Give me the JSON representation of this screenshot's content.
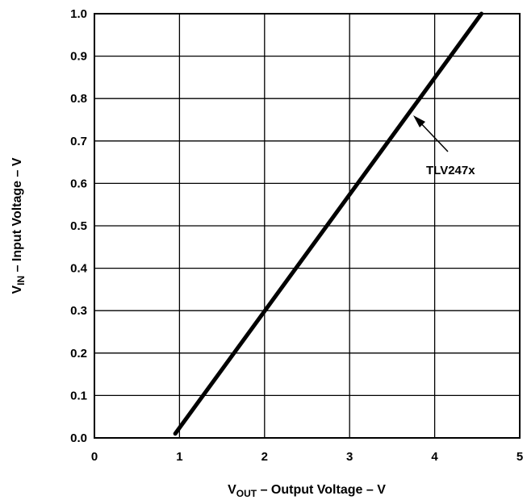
{
  "chart_data": {
    "type": "line",
    "title": "",
    "x": [
      0.95,
      4.55
    ],
    "series": [
      {
        "values": [
          0.01,
          1.0
        ]
      }
    ],
    "xlim": [
      0,
      5
    ],
    "ylim": [
      0.0,
      1.0
    ],
    "xticks": [
      "0",
      "1",
      "2",
      "3",
      "4",
      "5"
    ],
    "yticks": [
      "0.0",
      "0.1",
      "0.2",
      "0.3",
      "0.4",
      "0.5",
      "0.6",
      "0.7",
      "0.8",
      "0.9",
      "1.0"
    ],
    "xlabel": {
      "main": "V",
      "sub": "OUT",
      "rest": " – Output Voltage – V"
    },
    "ylabel": {
      "main": "V",
      "sub": "IN",
      "rest": " – Input Voltage – V"
    },
    "grid": true,
    "annotations": [
      {
        "text": "TLV247x",
        "x": 3.75,
        "y": 0.755
      }
    ],
    "colors": {
      "line": "#000000",
      "grid": "#000000"
    }
  }
}
